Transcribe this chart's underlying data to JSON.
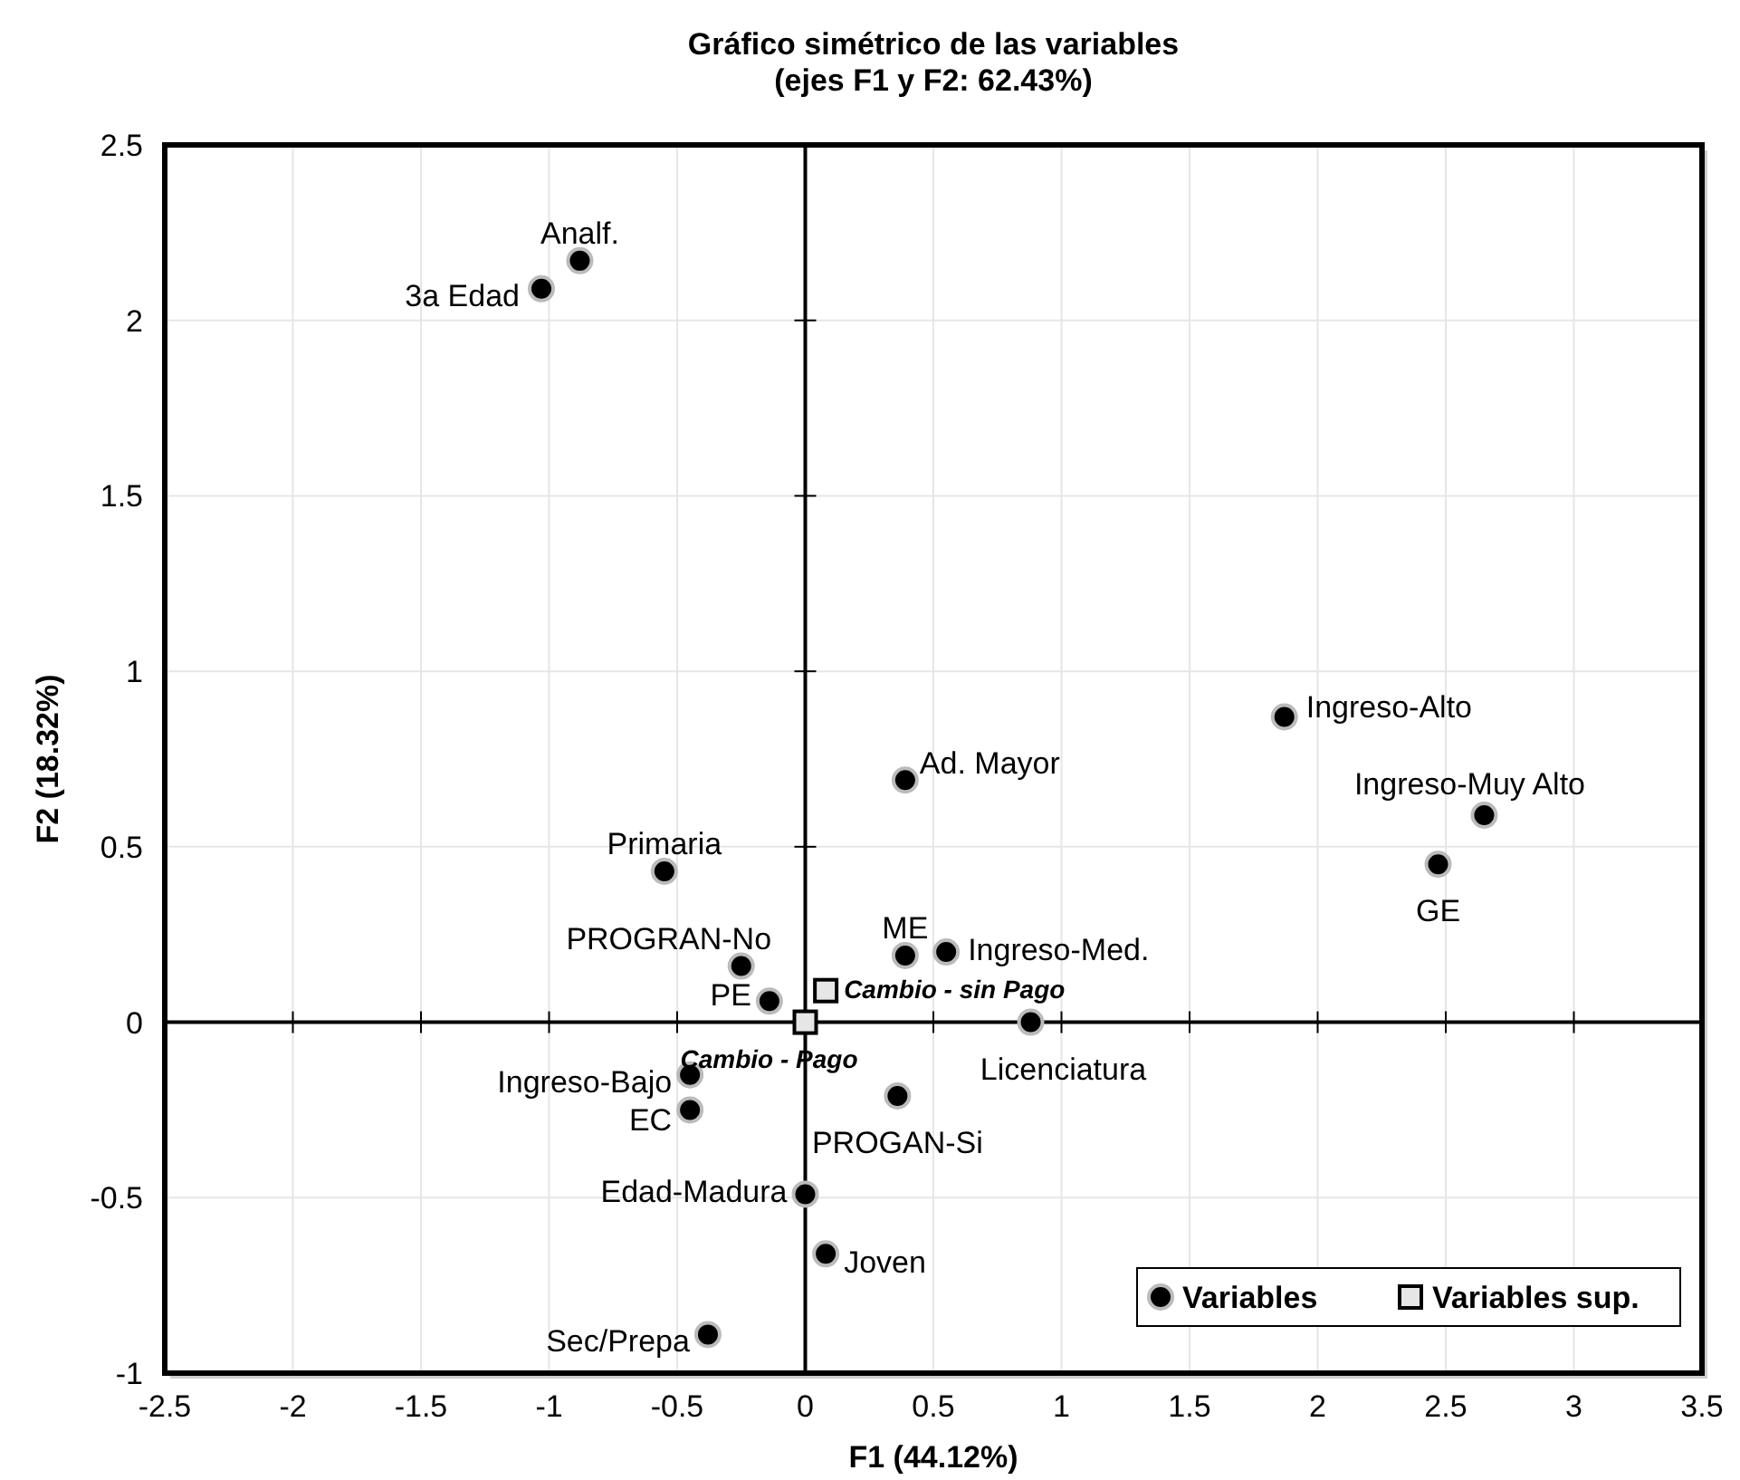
{
  "chart_data": {
    "type": "scatter",
    "title": "Gráfico simétrico de las variables",
    "subtitle": "(ejes F1 y  F2: 62.43%)",
    "xlabel": "F1 (44.12%)",
    "ylabel": "F2 (18.32%)",
    "xlim": [
      -2.5,
      3.5
    ],
    "xticks": [
      -2.5,
      -2,
      -1.5,
      -1,
      -0.5,
      0,
      0.5,
      1,
      1.5,
      2,
      2.5,
      3,
      3.5
    ],
    "ylim": [
      -1,
      2.5
    ],
    "yticks": [
      -1,
      -0.5,
      0,
      0.5,
      1,
      1.5,
      2,
      2.5
    ],
    "grid": true,
    "legend": "bottom right",
    "series": [
      {
        "name": "Variables",
        "color": "#000000",
        "marker": "circle",
        "x": [
          -0.88,
          -1.03,
          1.87,
          2.65,
          2.47,
          0.39,
          -0.55,
          -0.25,
          -0.14,
          0.39,
          0.55,
          0.88,
          -0.45,
          -0.45,
          0.36,
          0.0,
          0.08,
          -0.38
        ],
        "values": [
          2.17,
          2.09,
          0.87,
          0.59,
          0.45,
          0.69,
          0.43,
          0.16,
          0.06,
          0.19,
          0.2,
          0.0,
          -0.15,
          -0.25,
          -0.21,
          -0.49,
          -0.66,
          -0.89
        ]
      },
      {
        "name": "Variables sup.",
        "color": "#e6e6e6",
        "marker": "square",
        "x": [
          0.0,
          0.08
        ],
        "values": [
          0.0,
          0.09
        ]
      }
    ],
    "annotations": [
      {
        "text": "Analf.",
        "x": -0.88,
        "y": 2.17
      },
      {
        "text": "3a Edad",
        "x": -1.03,
        "y": 2.09
      },
      {
        "text": "Ingreso-Alto",
        "x": 1.87,
        "y": 0.87
      },
      {
        "text": "Ingreso-Muy Alto",
        "x": 2.65,
        "y": 0.59
      },
      {
        "text": "GE",
        "x": 2.47,
        "y": 0.45
      },
      {
        "text": "Ad. Mayor",
        "x": 0.39,
        "y": 0.69
      },
      {
        "text": "Primaria",
        "x": -0.55,
        "y": 0.43
      },
      {
        "text": "PROGRAN-No",
        "x": -0.25,
        "y": 0.16
      },
      {
        "text": "PE",
        "x": -0.14,
        "y": 0.06
      },
      {
        "text": "ME",
        "x": 0.39,
        "y": 0.19
      },
      {
        "text": "Ingreso-Med.",
        "x": 0.55,
        "y": 0.2
      },
      {
        "text": "Licenciatura",
        "x": 0.88,
        "y": 0.0
      },
      {
        "text": "Ingreso-Bajo",
        "x": -0.45,
        "y": -0.15
      },
      {
        "text": "EC",
        "x": -0.45,
        "y": -0.25
      },
      {
        "text": "PROGAN-Si",
        "x": 0.36,
        "y": -0.21
      },
      {
        "text": "Edad-Madura",
        "x": 0.0,
        "y": -0.49
      },
      {
        "text": "Joven",
        "x": 0.08,
        "y": -0.66
      },
      {
        "text": "Sec/Prepa",
        "x": -0.38,
        "y": -0.89
      },
      {
        "text": "Cambio - Pago",
        "x": 0.0,
        "y": 0.0
      },
      {
        "text": "Cambio - sin Pago",
        "x": 0.08,
        "y": 0.09
      }
    ]
  }
}
